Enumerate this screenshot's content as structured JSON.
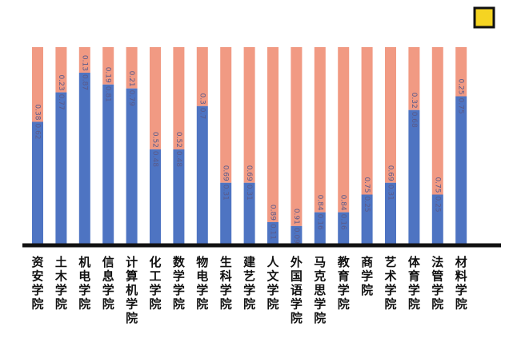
{
  "chart_data": {
    "type": "bar",
    "stacked": true,
    "orientation": "vertical",
    "categories": [
      "资安学院",
      "土木学院",
      "机电学院",
      "信息学院",
      "计算机学院",
      "化工学院",
      "数学学院",
      "物电学院",
      "生科学院",
      "建艺学院",
      "人文学院",
      "外国语学院",
      "马克思学院",
      "教育学院",
      "商学院",
      "艺术学院",
      "体育学院",
      "法管学院",
      "材料学院"
    ],
    "series": [
      {
        "values": [
          0.62,
          0.77,
          0.87,
          0.81,
          0.79,
          0.48,
          0.48,
          0.7,
          0.31,
          0.31,
          0.11,
          0.09,
          0.16,
          0.16,
          0.25,
          0.31,
          0.68,
          0.25,
          0.75
        ],
        "color": "#4e74c2"
      },
      {
        "values": [
          0.38,
          0.23,
          0.13,
          0.19,
          0.21,
          0.52,
          0.52,
          0.3,
          0.69,
          0.69,
          0.89,
          0.91,
          0.84,
          0.84,
          0.75,
          0.69,
          0.32,
          0.75,
          0.25
        ],
        "color": "#f19a83"
      }
    ],
    "ylim": [
      0,
      1
    ],
    "title": "",
    "xlabel": "",
    "ylabel": "",
    "grid": false,
    "legend": "none",
    "badge_color": "#f5d422",
    "axis_color": "#111111",
    "value_label_color": "#5a5a8a"
  }
}
